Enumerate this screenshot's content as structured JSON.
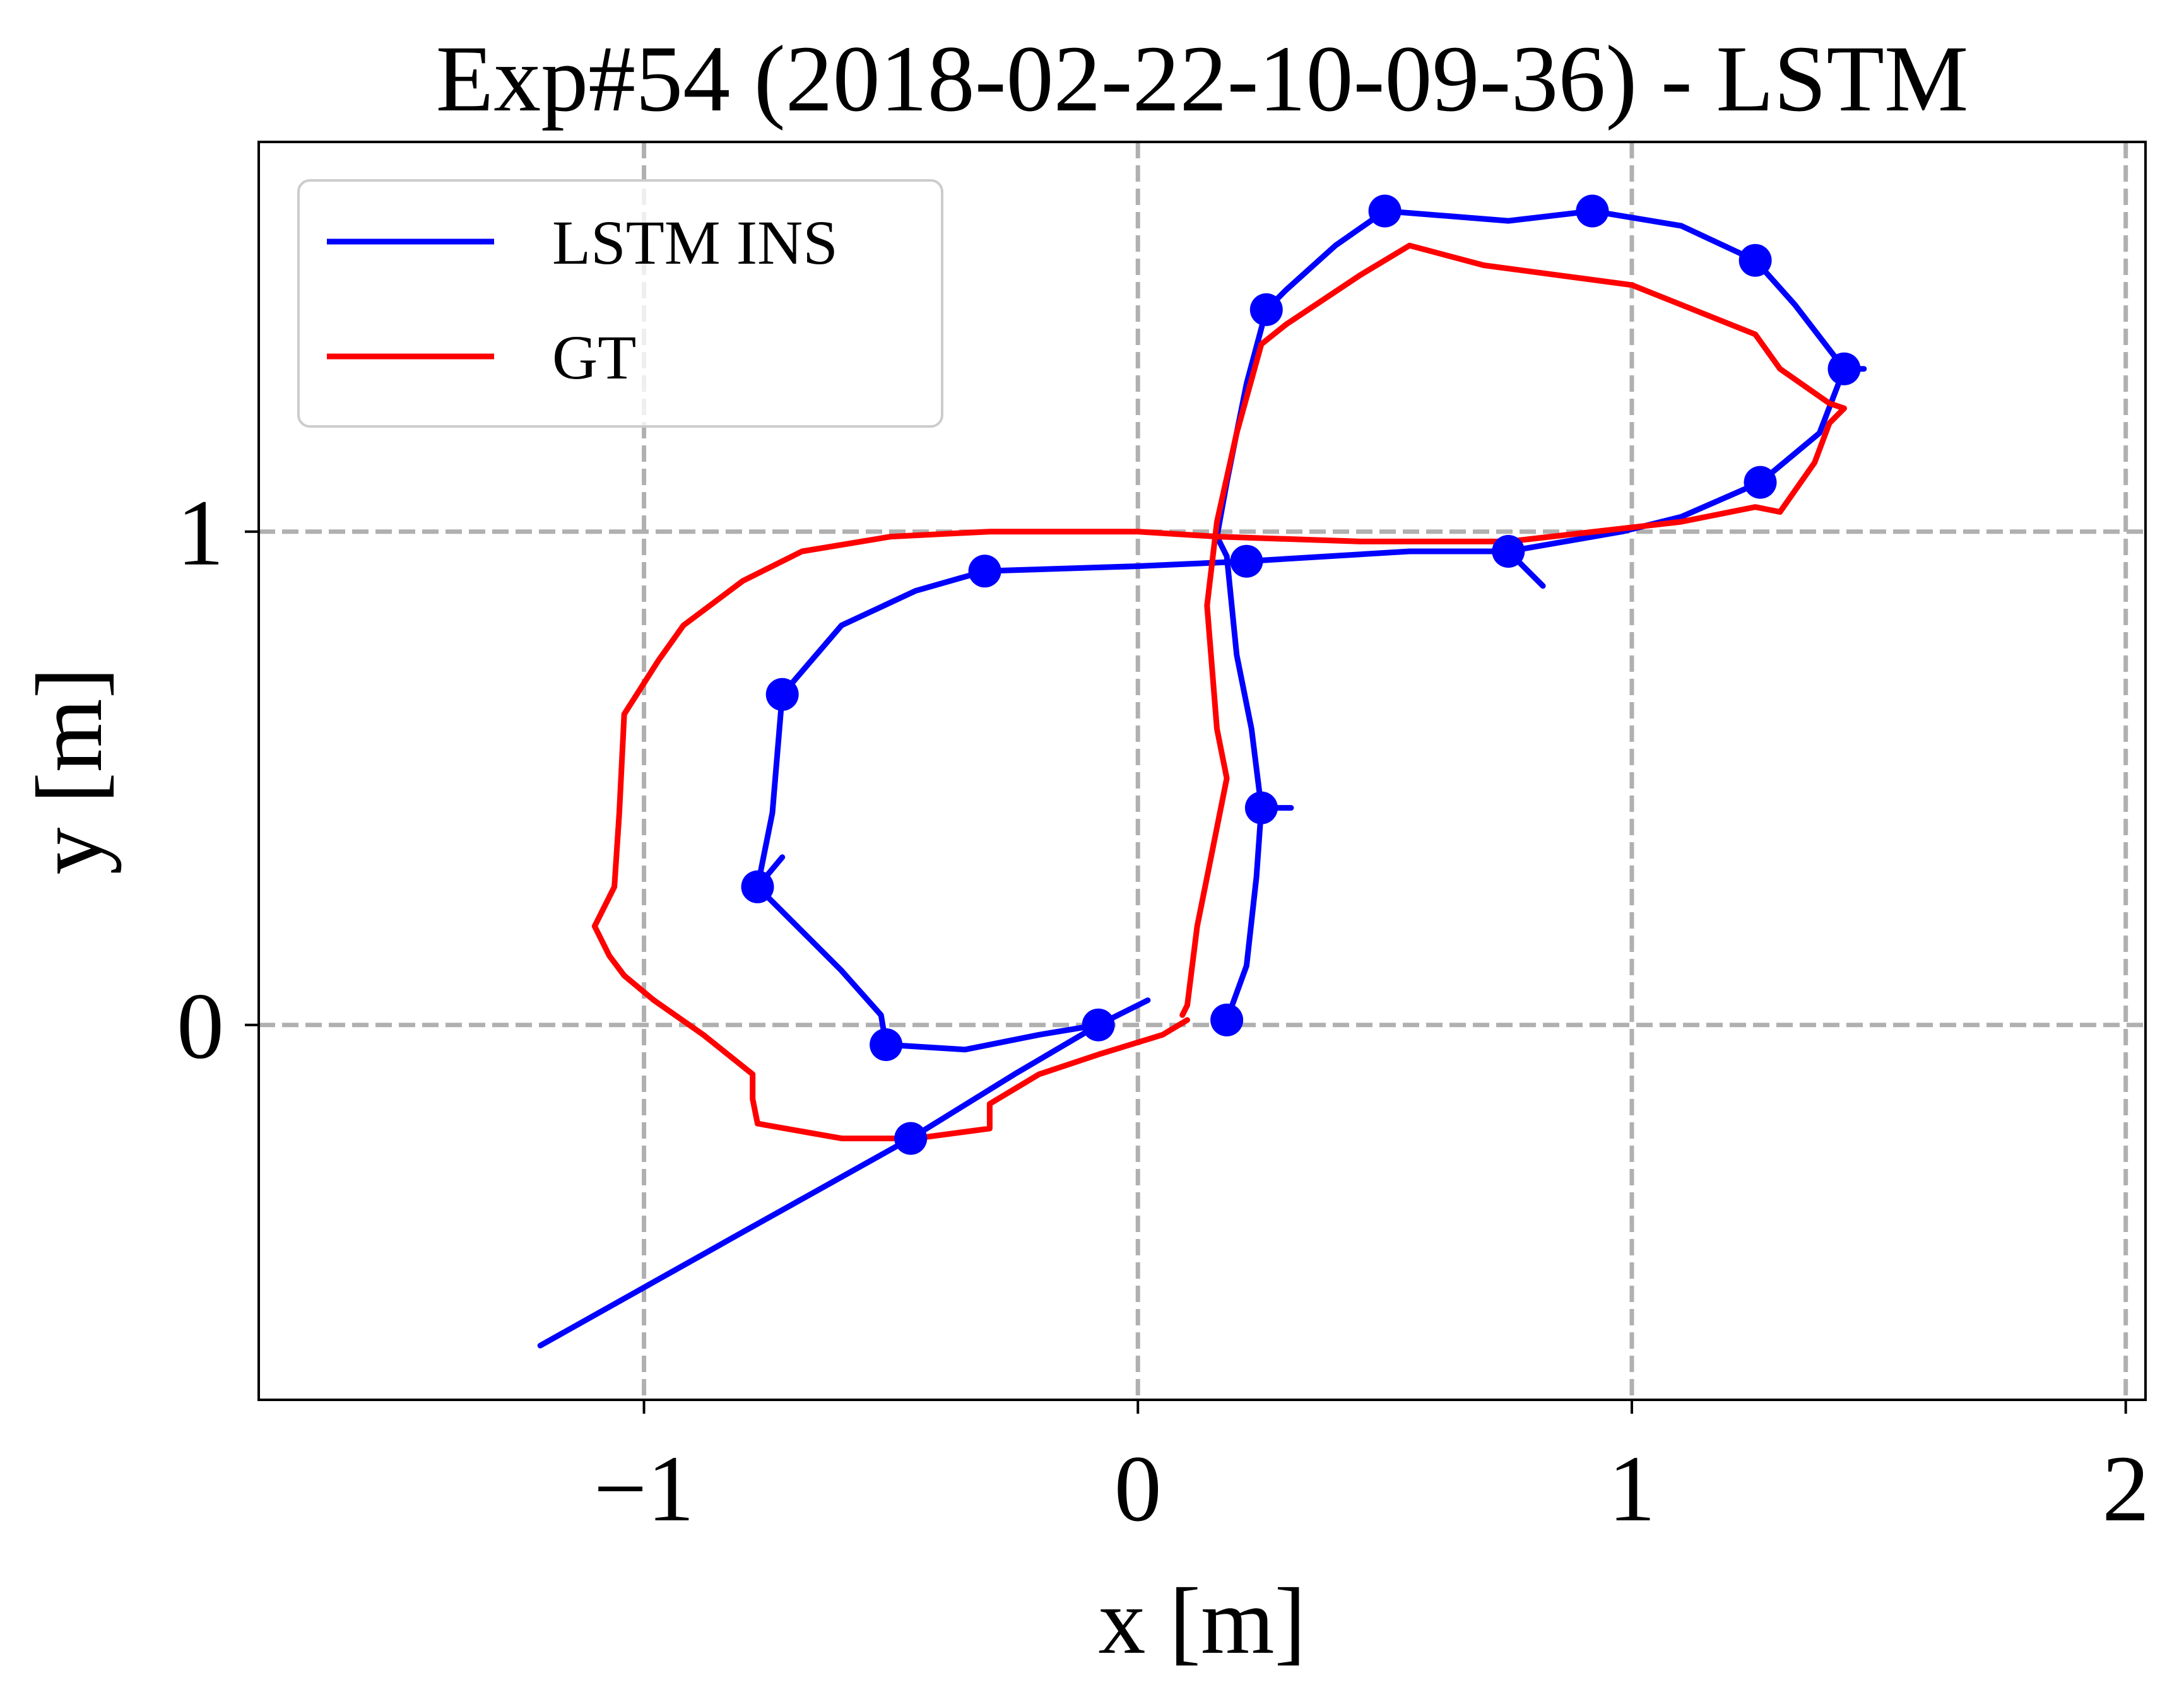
{
  "chart_data": {
    "type": "line",
    "title": "Exp#54 (2018-02-22-10-09-36) - LSTM",
    "xlabel": "x [m]",
    "ylabel": "y [m]",
    "xlim": [
      -1.78,
      2.04
    ],
    "ylim": [
      -0.76,
      1.79
    ],
    "xticks": [
      -1,
      0,
      1,
      2
    ],
    "xtick_labels": [
      "−1",
      "0",
      "1",
      "2"
    ],
    "yticks": [
      0,
      1
    ],
    "ytick_labels": [
      "0",
      "1"
    ],
    "grid": true,
    "legend_position": "top-left",
    "series": [
      {
        "name": "LSTM INS",
        "color": "#0000ff",
        "marker": "circle",
        "points": [
          [
            -1.21,
            -0.65
          ],
          [
            -0.8,
            -0.42
          ],
          [
            -0.46,
            -0.23
          ],
          [
            -0.25,
            -0.1
          ],
          [
            -0.08,
            0.0
          ],
          [
            0.02,
            0.05
          ],
          [
            -0.08,
            0.0
          ],
          [
            -0.2,
            -0.02
          ],
          [
            -0.35,
            -0.05
          ],
          [
            -0.51,
            -0.04
          ],
          [
            -0.52,
            0.02
          ],
          [
            -0.6,
            0.11
          ],
          [
            -0.77,
            0.28
          ],
          [
            -0.72,
            0.34
          ],
          [
            -0.77,
            0.28
          ],
          [
            -0.74,
            0.43
          ],
          [
            -0.72,
            0.67
          ],
          [
            -0.6,
            0.81
          ],
          [
            -0.45,
            0.88
          ],
          [
            -0.31,
            0.92
          ],
          [
            0.0,
            0.93
          ],
          [
            0.22,
            0.94
          ],
          [
            0.55,
            0.96
          ],
          [
            0.75,
            0.96
          ],
          [
            0.82,
            0.89
          ],
          [
            0.75,
            0.96
          ],
          [
            0.98,
            1.0
          ],
          [
            1.1,
            1.03
          ],
          [
            1.26,
            1.1
          ],
          [
            1.38,
            1.2
          ],
          [
            1.43,
            1.33
          ],
          [
            1.47,
            1.33
          ],
          [
            1.43,
            1.33
          ],
          [
            1.33,
            1.46
          ],
          [
            1.25,
            1.55
          ],
          [
            1.1,
            1.62
          ],
          [
            0.92,
            1.65
          ],
          [
            0.75,
            1.63
          ],
          [
            0.5,
            1.65
          ],
          [
            0.4,
            1.58
          ],
          [
            0.3,
            1.49
          ],
          [
            0.26,
            1.45
          ],
          [
            0.22,
            1.3
          ],
          [
            0.18,
            1.1
          ],
          [
            0.16,
            0.99
          ],
          [
            0.18,
            0.95
          ],
          [
            0.2,
            0.75
          ],
          [
            0.23,
            0.6
          ],
          [
            0.25,
            0.44
          ],
          [
            0.31,
            0.44
          ],
          [
            0.25,
            0.44
          ],
          [
            0.24,
            0.3
          ],
          [
            0.22,
            0.12
          ],
          [
            0.18,
            0.01
          ]
        ],
        "markers": [
          [
            -0.46,
            -0.23
          ],
          [
            -0.08,
            0.0
          ],
          [
            -0.51,
            -0.04
          ],
          [
            -0.77,
            0.28
          ],
          [
            -0.72,
            0.67
          ],
          [
            -0.31,
            0.92
          ],
          [
            0.22,
            0.94
          ],
          [
            0.75,
            0.96
          ],
          [
            1.26,
            1.1
          ],
          [
            1.43,
            1.33
          ],
          [
            1.25,
            1.55
          ],
          [
            0.92,
            1.65
          ],
          [
            0.5,
            1.65
          ],
          [
            0.26,
            1.45
          ],
          [
            0.25,
            0.44
          ],
          [
            0.18,
            0.01
          ]
        ]
      },
      {
        "name": "GT",
        "color": "#ff0000",
        "points": [
          [
            0.1,
            0.01
          ],
          [
            0.05,
            -0.02
          ],
          [
            -0.08,
            -0.06
          ],
          [
            -0.2,
            -0.1
          ],
          [
            -0.3,
            -0.16
          ],
          [
            -0.3,
            -0.21
          ],
          [
            -0.45,
            -0.23
          ],
          [
            -0.6,
            -0.23
          ],
          [
            -0.77,
            -0.2
          ],
          [
            -0.78,
            -0.15
          ],
          [
            -0.78,
            -0.1
          ],
          [
            -0.88,
            -0.02
          ],
          [
            -0.98,
            0.05
          ],
          [
            -1.04,
            0.1
          ],
          [
            -1.07,
            0.14
          ],
          [
            -1.1,
            0.2
          ],
          [
            -1.06,
            0.28
          ],
          [
            -1.05,
            0.43
          ],
          [
            -1.04,
            0.63
          ],
          [
            -0.97,
            0.74
          ],
          [
            -0.92,
            0.81
          ],
          [
            -0.8,
            0.9
          ],
          [
            -0.68,
            0.96
          ],
          [
            -0.5,
            0.99
          ],
          [
            -0.3,
            1.0
          ],
          [
            0.0,
            1.0
          ],
          [
            0.16,
            0.99
          ],
          [
            0.45,
            0.98
          ],
          [
            0.75,
            0.98
          ],
          [
            1.1,
            1.02
          ],
          [
            1.25,
            1.05
          ],
          [
            1.3,
            1.04
          ],
          [
            1.37,
            1.14
          ],
          [
            1.4,
            1.22
          ],
          [
            1.43,
            1.25
          ],
          [
            1.4,
            1.26
          ],
          [
            1.3,
            1.33
          ],
          [
            1.25,
            1.4
          ],
          [
            1.0,
            1.5
          ],
          [
            0.7,
            1.54
          ],
          [
            0.55,
            1.58
          ],
          [
            0.45,
            1.52
          ],
          [
            0.3,
            1.42
          ],
          [
            0.25,
            1.38
          ],
          [
            0.2,
            1.2
          ],
          [
            0.16,
            1.02
          ],
          [
            0.14,
            0.85
          ],
          [
            0.16,
            0.6
          ],
          [
            0.18,
            0.5
          ],
          [
            0.15,
            0.35
          ],
          [
            0.12,
            0.2
          ],
          [
            0.1,
            0.04
          ],
          [
            0.09,
            0.02
          ]
        ]
      }
    ]
  }
}
